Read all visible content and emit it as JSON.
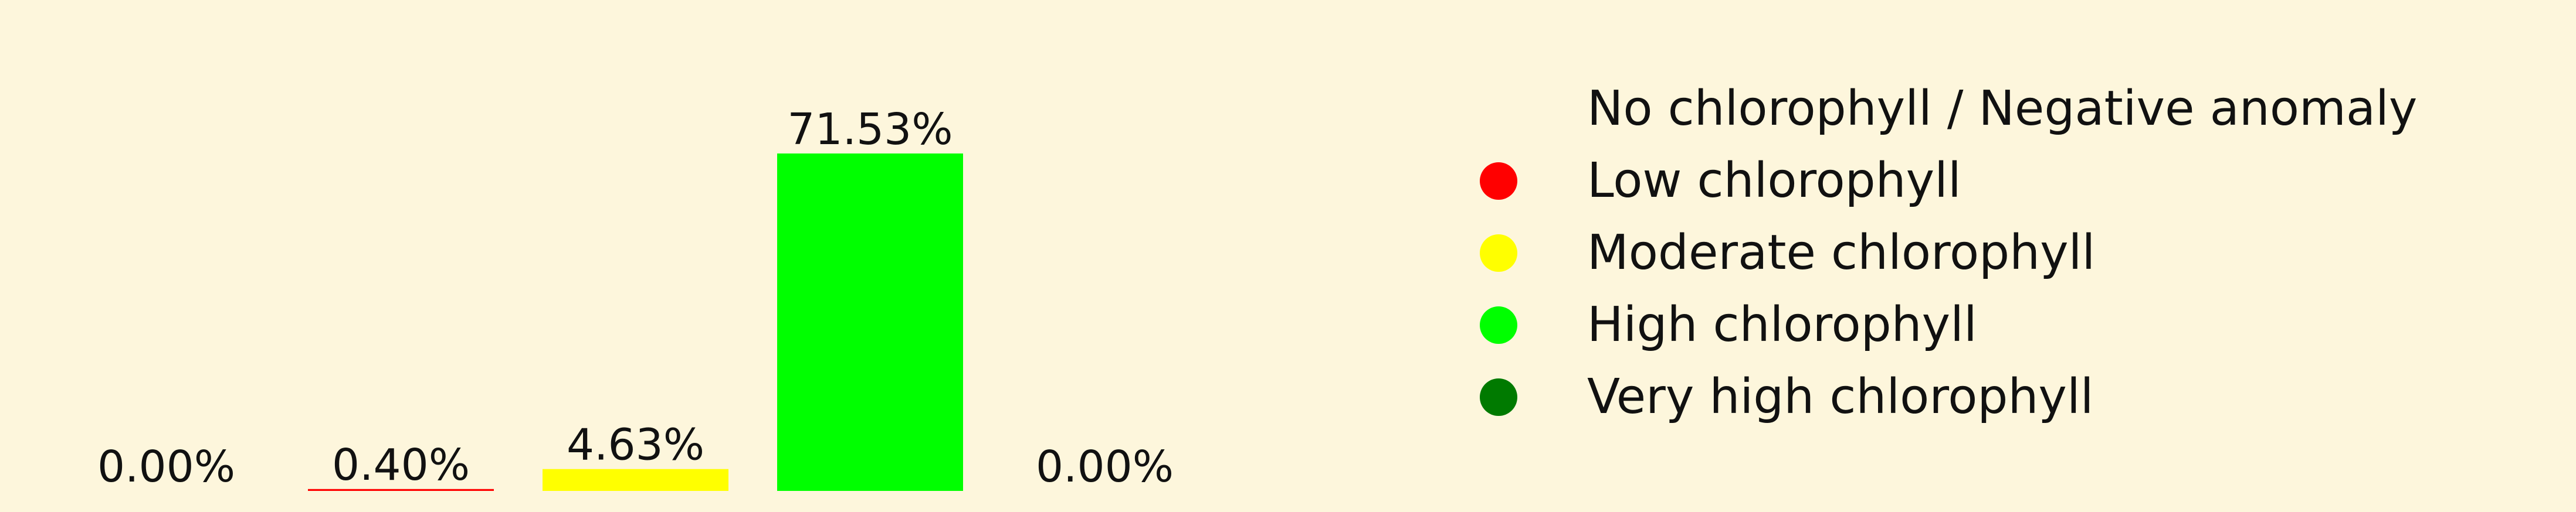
{
  "chart_data": {
    "type": "bar",
    "categories": [
      "No chlorophyll / Negative anomaly",
      "Low chlorophyll",
      "Moderate chlorophyll",
      "High chlorophyll",
      "Very high chlorophyll"
    ],
    "values": [
      0.0,
      0.4,
      4.63,
      71.53,
      0.0
    ],
    "value_labels": [
      "0.00%",
      "0.40%",
      "4.63%",
      "71.53%",
      "0.00%"
    ],
    "colors": [
      "#fdf6dc",
      "#ff0000",
      "#ffff00",
      "#00ff00",
      "#007a00"
    ],
    "ylim": [
      0,
      71.53
    ],
    "grid": false,
    "legend_position": "right",
    "legend": [
      {
        "label": "No chlorophyll / Negative anomaly",
        "color": "#fdf6dc"
      },
      {
        "label": "Low chlorophyll",
        "color": "#ff0000"
      },
      {
        "label": "Moderate chlorophyll",
        "color": "#ffff00"
      },
      {
        "label": "High chlorophyll",
        "color": "#00ff00"
      },
      {
        "label": "Very high chlorophyll",
        "color": "#007a00"
      }
    ]
  },
  "background_color": "#fdf6dc"
}
